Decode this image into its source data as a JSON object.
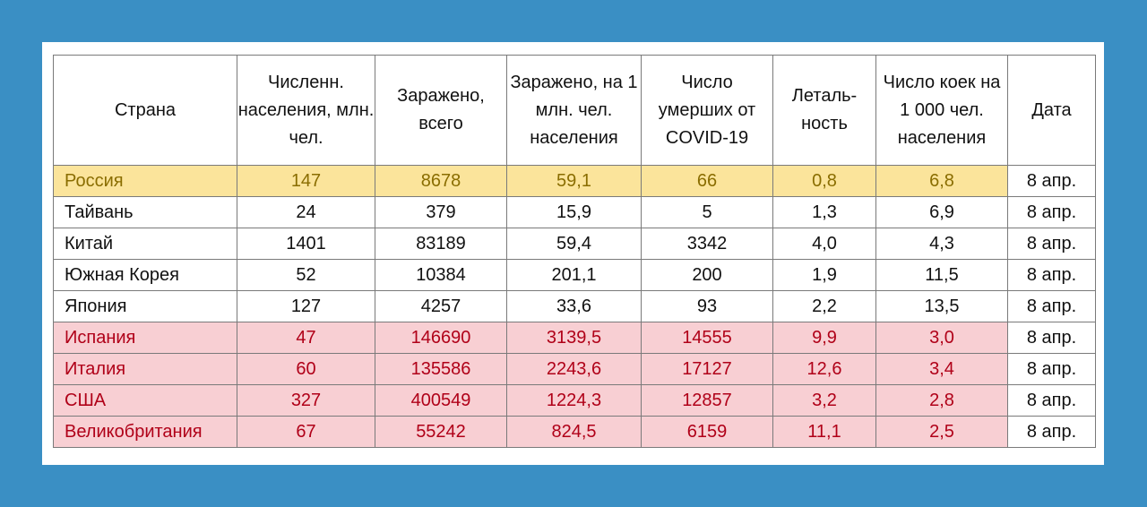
{
  "headers": {
    "country": "Страна",
    "population": "Численн. населения, млн. чел.",
    "infected_total": "Заражено, всего",
    "infected_per_million": "Заражено, на 1 млн. чел. населения",
    "deaths": "Число умерших от COVID-19",
    "lethality": "Леталь-ность",
    "beds": "Число коек на 1 000 чел. населения",
    "date": "Дата"
  },
  "rows": [
    {
      "country": "Россия",
      "population": "147",
      "infected_total": "8678",
      "infected_per_million": "59,1",
      "deaths": "66",
      "lethality": "0,8",
      "beds": "6,8",
      "date": "8 апр."
    },
    {
      "country": "Тайвань",
      "population": "24",
      "infected_total": "379",
      "infected_per_million": "15,9",
      "deaths": "5",
      "lethality": "1,3",
      "beds": "6,9",
      "date": "8 апр."
    },
    {
      "country": "Китай",
      "population": "1401",
      "infected_total": "83189",
      "infected_per_million": "59,4",
      "deaths": "3342",
      "lethality": "4,0",
      "beds": "4,3",
      "date": "8 апр."
    },
    {
      "country": "Южная Корея",
      "population": "52",
      "infected_total": "10384",
      "infected_per_million": "201,1",
      "deaths": "200",
      "lethality": "1,9",
      "beds": "11,5",
      "date": "8 апр."
    },
    {
      "country": "Япония",
      "population": "127",
      "infected_total": "4257",
      "infected_per_million": "33,6",
      "deaths": "93",
      "lethality": "2,2",
      "beds": "13,5",
      "date": "8 апр."
    },
    {
      "country": "Испания",
      "population": "47",
      "infected_total": "146690",
      "infected_per_million": "3139,5",
      "deaths": "14555",
      "lethality": "9,9",
      "beds": "3,0",
      "date": "8 апр."
    },
    {
      "country": "Италия",
      "population": "60",
      "infected_total": "135586",
      "infected_per_million": "2243,6",
      "deaths": "17127",
      "lethality": "12,6",
      "beds": "3,4",
      "date": "8 апр."
    },
    {
      "country": "США",
      "population": "327",
      "infected_total": "400549",
      "infected_per_million": "1224,3",
      "deaths": "12857",
      "lethality": "3,2",
      "beds": "2,8",
      "date": "8 апр."
    },
    {
      "country": "Великобритания",
      "population": "67",
      "infected_total": "55242",
      "infected_per_million": "824,5",
      "deaths": "6159",
      "lethality": "11,1",
      "beds": "2,5",
      "date": "8 апр."
    }
  ],
  "colors": {
    "page_background": "#3a8fc4",
    "highlight_yellow": "#fbe49b",
    "highlight_yellow_text": "#8a6d00",
    "highlight_red": "#f8cfd3",
    "highlight_red_text": "#b00018"
  }
}
